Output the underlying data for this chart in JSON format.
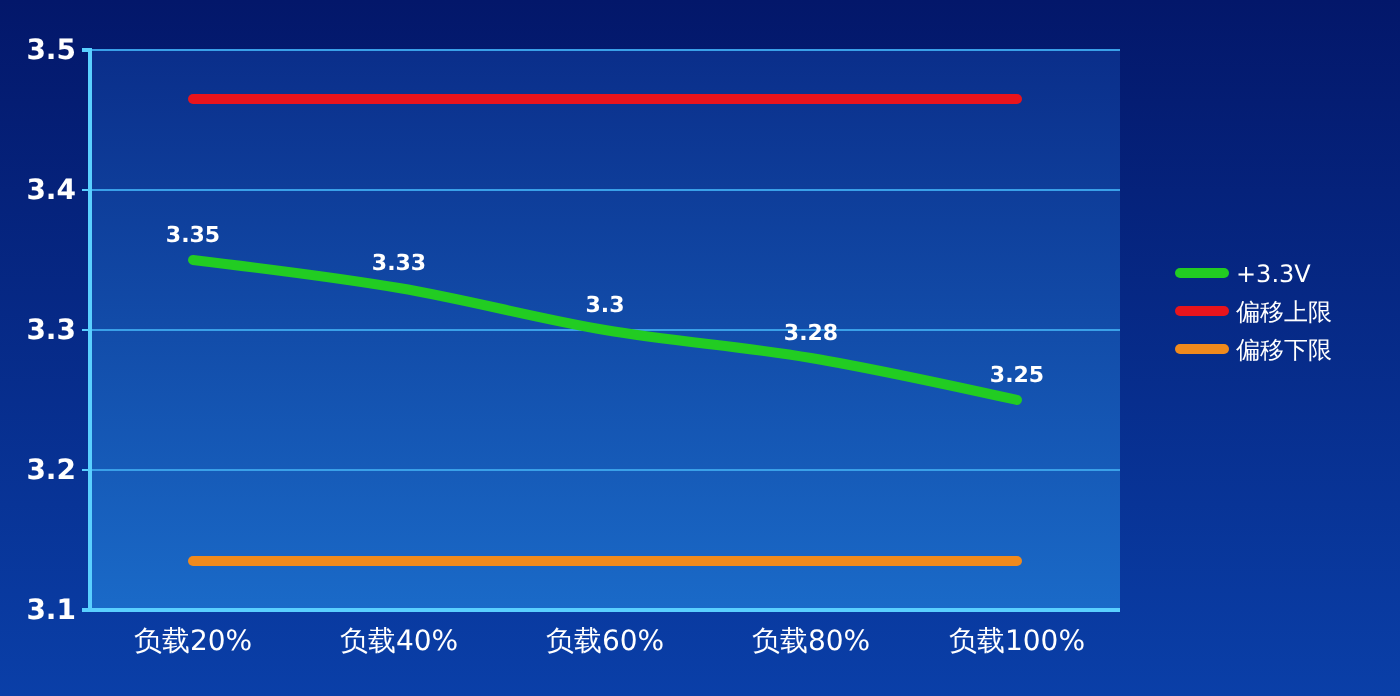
{
  "chart_data": {
    "type": "line",
    "categories": [
      "负载20%",
      "负载40%",
      "负载60%",
      "负载80%",
      "负载100%"
    ],
    "series": [
      {
        "name": "+3.3V",
        "color": "#22cc22",
        "values": [
          3.35,
          3.33,
          3.3,
          3.28,
          3.25
        ],
        "value_labels": [
          "3.35",
          "3.33",
          "3.3",
          "3.28",
          "3.25"
        ]
      },
      {
        "name": "偏移上限",
        "color": "#e8141c",
        "values": [
          3.465,
          3.465,
          3.465,
          3.465,
          3.465
        ]
      },
      {
        "name": "偏移下限",
        "color": "#f08a1c",
        "values": [
          3.135,
          3.135,
          3.135,
          3.135,
          3.135
        ]
      }
    ],
    "ylim": [
      3.1,
      3.5
    ],
    "yticks": [
      3.1,
      3.2,
      3.3,
      3.4,
      3.5
    ],
    "grid": "y",
    "legend": "right",
    "marker": "none",
    "line_style": "solid"
  }
}
